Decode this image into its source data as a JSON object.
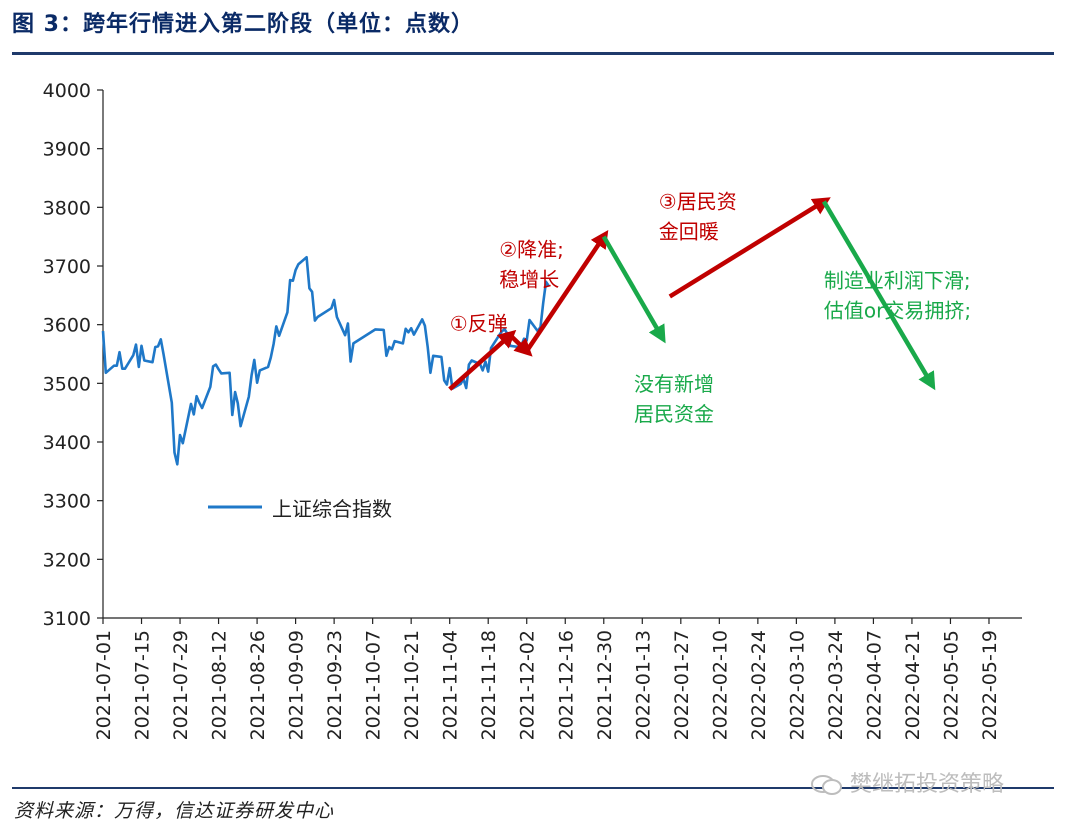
{
  "title": "图 3：跨年行情进入第二阶段（单位：点数）",
  "source": "资料来源：万得，信达证券研发中心",
  "watermark": "樊继拓投资策略",
  "colors": {
    "series": "#1f78c8",
    "up_arrow": "#c00000",
    "down_arrow": "#19a94a",
    "axis": "#222222"
  },
  "chart_data": {
    "type": "line",
    "ylim": [
      3100,
      4000
    ],
    "yticks": [
      3100,
      3200,
      3300,
      3400,
      3500,
      3600,
      3700,
      3800,
      3900,
      4000
    ],
    "xlim": [
      "2021-07-01",
      "2022-05-31"
    ],
    "xticks": [
      "2021-07-01",
      "2021-07-15",
      "2021-07-29",
      "2021-08-12",
      "2021-08-26",
      "2021-09-09",
      "2021-09-23",
      "2021-10-07",
      "2021-10-21",
      "2021-11-04",
      "2021-11-18",
      "2021-12-02",
      "2021-12-16",
      "2021-12-30",
      "2022-01-13",
      "2022-01-27",
      "2022-02-10",
      "2022-02-24",
      "2022-03-10",
      "2022-03-24",
      "2022-04-07",
      "2022-04-21",
      "2022-05-05",
      "2022-05-19"
    ],
    "legend": {
      "position": "lower-left"
    },
    "series": [
      {
        "name": "上证综合指数",
        "points": [
          [
            "2021-07-01",
            3589
          ],
          [
            "2021-07-02",
            3518
          ],
          [
            "2021-07-05",
            3530
          ],
          [
            "2021-07-06",
            3530
          ],
          [
            "2021-07-07",
            3553
          ],
          [
            "2021-07-08",
            3525
          ],
          [
            "2021-07-09",
            3525
          ],
          [
            "2021-07-12",
            3548
          ],
          [
            "2021-07-13",
            3566
          ],
          [
            "2021-07-14",
            3528
          ],
          [
            "2021-07-15",
            3564
          ],
          [
            "2021-07-16",
            3539
          ],
          [
            "2021-07-19",
            3536
          ],
          [
            "2021-07-20",
            3562
          ],
          [
            "2021-07-21",
            3563
          ],
          [
            "2021-07-22",
            3575
          ],
          [
            "2021-07-23",
            3550
          ],
          [
            "2021-07-26",
            3467
          ],
          [
            "2021-07-27",
            3382
          ],
          [
            "2021-07-28",
            3362
          ],
          [
            "2021-07-29",
            3412
          ],
          [
            "2021-07-30",
            3398
          ],
          [
            "2021-08-02",
            3465
          ],
          [
            "2021-08-03",
            3447
          ],
          [
            "2021-08-04",
            3478
          ],
          [
            "2021-08-05",
            3467
          ],
          [
            "2021-08-06",
            3458
          ],
          [
            "2021-08-09",
            3494
          ],
          [
            "2021-08-10",
            3529
          ],
          [
            "2021-08-11",
            3532
          ],
          [
            "2021-08-12",
            3524
          ],
          [
            "2021-08-13",
            3517
          ],
          [
            "2021-08-16",
            3518
          ],
          [
            "2021-08-17",
            3446
          ],
          [
            "2021-08-18",
            3485
          ],
          [
            "2021-08-19",
            3466
          ],
          [
            "2021-08-20",
            3427
          ],
          [
            "2021-08-23",
            3477
          ],
          [
            "2021-08-24",
            3514
          ],
          [
            "2021-08-25",
            3540
          ],
          [
            "2021-08-26",
            3501
          ],
          [
            "2021-08-27",
            3522
          ],
          [
            "2021-08-30",
            3528
          ],
          [
            "2021-08-31",
            3544
          ],
          [
            "2021-09-01",
            3567
          ],
          [
            "2021-09-02",
            3597
          ],
          [
            "2021-09-03",
            3581
          ],
          [
            "2021-09-06",
            3621
          ],
          [
            "2021-09-07",
            3676
          ],
          [
            "2021-09-08",
            3675
          ],
          [
            "2021-09-09",
            3693
          ],
          [
            "2021-09-10",
            3703
          ],
          [
            "2021-09-13",
            3715
          ],
          [
            "2021-09-14",
            3662
          ],
          [
            "2021-09-15",
            3656
          ],
          [
            "2021-09-16",
            3607
          ],
          [
            "2021-09-17",
            3613
          ],
          [
            "2021-09-22",
            3628
          ],
          [
            "2021-09-23",
            3642
          ],
          [
            "2021-09-24",
            3613
          ],
          [
            "2021-09-27",
            3582
          ],
          [
            "2021-09-28",
            3602
          ],
          [
            "2021-09-29",
            3537
          ],
          [
            "2021-09-30",
            3568
          ],
          [
            "2021-10-08",
            3592
          ],
          [
            "2021-10-11",
            3591
          ],
          [
            "2021-10-12",
            3547
          ],
          [
            "2021-10-13",
            3562
          ],
          [
            "2021-10-14",
            3558
          ],
          [
            "2021-10-15",
            3572
          ],
          [
            "2021-10-18",
            3568
          ],
          [
            "2021-10-19",
            3593
          ],
          [
            "2021-10-20",
            3587
          ],
          [
            "2021-10-21",
            3594
          ],
          [
            "2021-10-22",
            3583
          ],
          [
            "2021-10-25",
            3609
          ],
          [
            "2021-10-26",
            3598
          ],
          [
            "2021-10-27",
            3562
          ],
          [
            "2021-10-28",
            3518
          ],
          [
            "2021-10-29",
            3547
          ],
          [
            "2021-11-01",
            3545
          ],
          [
            "2021-11-02",
            3505
          ],
          [
            "2021-11-03",
            3498
          ],
          [
            "2021-11-04",
            3526
          ],
          [
            "2021-11-05",
            3491
          ],
          [
            "2021-11-08",
            3499
          ],
          [
            "2021-11-09",
            3508
          ],
          [
            "2021-11-10",
            3492
          ],
          [
            "2021-11-11",
            3532
          ],
          [
            "2021-11-12",
            3539
          ],
          [
            "2021-11-15",
            3533
          ],
          [
            "2021-11-16",
            3522
          ],
          [
            "2021-11-17",
            3537
          ],
          [
            "2021-11-18",
            3520
          ],
          [
            "2021-11-19",
            3560
          ],
          [
            "2021-11-22",
            3582
          ],
          [
            "2021-11-23",
            3589
          ],
          [
            "2021-11-24",
            3592
          ],
          [
            "2021-11-25",
            3584
          ],
          [
            "2021-11-26",
            3564
          ],
          [
            "2021-11-29",
            3562
          ],
          [
            "2021-11-30",
            3564
          ],
          [
            "2021-12-01",
            3576
          ],
          [
            "2021-12-02",
            3573
          ],
          [
            "2021-12-03",
            3608
          ],
          [
            "2021-12-06",
            3589
          ],
          [
            "2021-12-07",
            3596
          ],
          [
            "2021-12-08",
            3637
          ],
          [
            "2021-12-09",
            3673
          ],
          [
            "2021-12-10",
            3666
          ]
        ]
      }
    ],
    "annotations": [
      {
        "kind": "arrow",
        "color": "up",
        "from": [
          "2021-11-04",
          3490
        ],
        "to": [
          "2021-11-26",
          3582
        ]
      },
      {
        "kind": "arrow",
        "color": "up",
        "from": [
          "2021-11-26",
          3582
        ],
        "to": [
          "2021-12-02",
          3555
        ]
      },
      {
        "kind": "arrow",
        "color": "up",
        "from": [
          "2021-12-02",
          3555
        ],
        "to": [
          "2021-12-30",
          3750
        ]
      },
      {
        "kind": "arrow",
        "color": "down",
        "from": [
          "2021-12-30",
          3750
        ],
        "to": [
          "2022-01-20",
          3580
        ]
      },
      {
        "kind": "arrow",
        "color": "up",
        "from": [
          "2022-01-23",
          3648
        ],
        "to": [
          "2022-03-20",
          3810
        ]
      },
      {
        "kind": "arrow",
        "color": "down",
        "from": [
          "2022-03-20",
          3810
        ],
        "to": [
          "2022-04-28",
          3500
        ]
      },
      {
        "kind": "label",
        "color": "up",
        "at": [
          "2021-11-04",
          3590
        ],
        "lines": [
          "①反弹"
        ]
      },
      {
        "kind": "label",
        "color": "up",
        "at": [
          "2021-11-22",
          3716
        ],
        "lines": [
          "②降准;",
          "稳增长"
        ]
      },
      {
        "kind": "label",
        "color": "down",
        "at": [
          "2022-01-10",
          3487
        ],
        "lines": [
          "没有新增",
          "居民资金"
        ]
      },
      {
        "kind": "label",
        "color": "up",
        "at": [
          "2022-01-19",
          3798
        ],
        "lines": [
          "③居民资",
          "金回暖"
        ]
      },
      {
        "kind": "label",
        "color": "down",
        "at": [
          "2022-03-20",
          3663
        ],
        "lines": [
          "制造业利润下滑;",
          "估值or交易拥挤;"
        ]
      }
    ]
  }
}
